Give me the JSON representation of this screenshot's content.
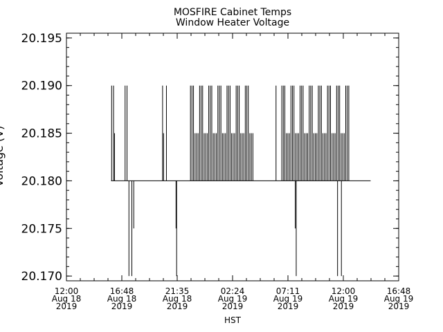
{
  "chart_data": {
    "type": "line",
    "title": "MOSFIRE Cabinet Temps",
    "subtitle": "Window Heater Voltage",
    "xlabel": "HST",
    "ylabel": "Voltage (V)",
    "ylim": [
      20.1695,
      20.1955
    ],
    "xlim": [
      "2019-08-18 12:00",
      "2019-08-19 16:48"
    ],
    "yticks": [
      "20.170",
      "20.175",
      "20.180",
      "20.185",
      "20.190",
      "20.195"
    ],
    "xticks": [
      {
        "time": "12:00",
        "date": "Aug 18",
        "year": "2019"
      },
      {
        "time": "16:48",
        "date": "Aug 18",
        "year": "2019"
      },
      {
        "time": "21:35",
        "date": "Aug 18",
        "year": "2019"
      },
      {
        "time": "02:24",
        "date": "Aug 19",
        "year": "2019"
      },
      {
        "time": "07:11",
        "date": "Aug 19",
        "year": "2019"
      },
      {
        "time": "12:00",
        "date": "Aug 19",
        "year": "2019"
      },
      {
        "time": "16:48",
        "date": "Aug 19",
        "year": "2019"
      }
    ],
    "baseline": 20.18,
    "grid": false,
    "series": [
      {
        "values_note": "baseline with spikes",
        "x_start": "2019-08-18 15:52",
        "x_end": "2019-08-19 14:22",
        "spikes": [
          {
            "x": "2019-08-18 15:55",
            "y": 20.19
          },
          {
            "x": "2019-08-18 16:05",
            "y": 20.19
          },
          {
            "x": "2019-08-18 16:10",
            "y": 20.185
          },
          {
            "x": "2019-08-18 17:05",
            "y": 20.19
          },
          {
            "x": "2019-08-18 17:15",
            "y": 20.19
          },
          {
            "x": "2019-08-18 17:25",
            "y": 20.17
          },
          {
            "x": "2019-08-18 17:40",
            "y": 20.17
          },
          {
            "x": "2019-08-18 17:50",
            "y": 20.175
          },
          {
            "x": "2019-08-18 20:20",
            "y": 20.19
          },
          {
            "x": "2019-08-18 20:25",
            "y": 20.185
          },
          {
            "x": "2019-08-18 20:40",
            "y": 20.19
          },
          {
            "x": "2019-08-18 21:30",
            "y": 20.175
          },
          {
            "x": "2019-08-18 21:33",
            "y": 20.17
          },
          {
            "x": "2019-08-18 07:46",
            "y": 20.185
          },
          {
            "x": "2019-08-19 06:10",
            "y": 20.19
          },
          {
            "x": "2019-08-19 07:50",
            "y": 20.175
          },
          {
            "x": "2019-08-19 07:55",
            "y": 20.17
          },
          {
            "x": "2019-08-19 11:30",
            "y": 20.17
          },
          {
            "x": "2019-08-19 11:50",
            "y": 20.17
          }
        ],
        "dense_bursts": [
          {
            "from": "2019-08-18 22:45",
            "to": "2019-08-19 04:15",
            "values": [
              20.19,
              20.185
            ]
          },
          {
            "from": "2019-08-19 06:40",
            "to": "2019-08-19 12:30",
            "values": [
              20.19,
              20.185
            ]
          }
        ]
      }
    ]
  }
}
